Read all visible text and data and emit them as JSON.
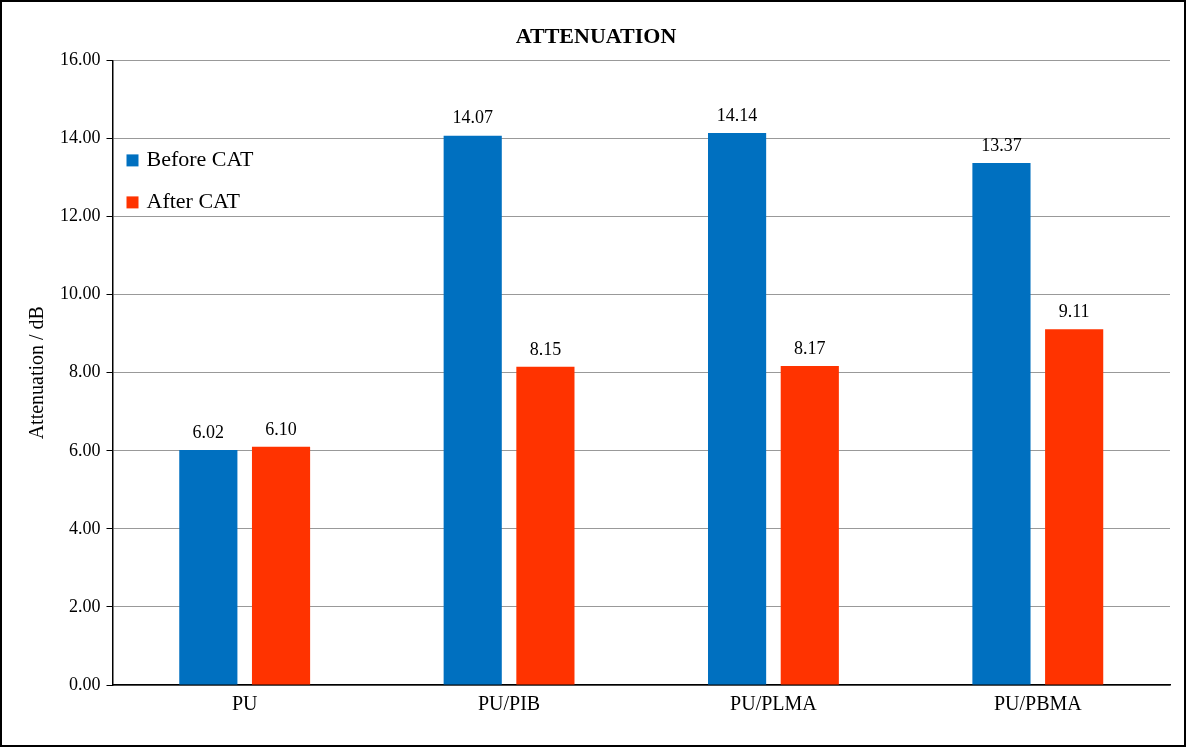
{
  "chart_data": {
    "type": "bar",
    "title": "ATTENUATION",
    "ylabel": "Attenuation / dB",
    "categories": [
      "PU",
      "PU/PIB",
      "PU/PLMA",
      "PU/PBMA"
    ],
    "series": [
      {
        "name": "Before CAT",
        "color": "#0070c0",
        "values": [
          6.02,
          14.07,
          14.14,
          13.37
        ],
        "value_labels": [
          "6.02",
          "14.07",
          "14.14",
          "13.37"
        ]
      },
      {
        "name": "After CAT",
        "color": "#ff3300",
        "values": [
          6.1,
          8.15,
          8.17,
          9.11
        ],
        "value_labels": [
          "6.10",
          "8.15",
          "8.17",
          "9.11"
        ]
      }
    ],
    "ylim": [
      0,
      16
    ],
    "yticks": [
      {
        "value": 0,
        "label": "0.00"
      },
      {
        "value": 2,
        "label": "2.00"
      },
      {
        "value": 4,
        "label": "4.00"
      },
      {
        "value": 6,
        "label": "6.00"
      },
      {
        "value": 8,
        "label": "8.00"
      },
      {
        "value": 10,
        "label": "10.00"
      },
      {
        "value": 12,
        "label": "12.00"
      },
      {
        "value": 14,
        "label": "14.00"
      },
      {
        "value": 16,
        "label": "16.00"
      }
    ],
    "grid": "y",
    "legend": "top left"
  }
}
